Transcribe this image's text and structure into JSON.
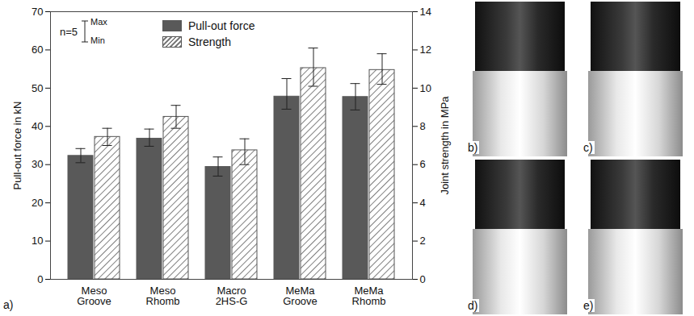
{
  "chart_data": {
    "type": "bar",
    "categories": [
      "Meso Groove",
      "Meso Rhomb",
      "Macro 2HS-G",
      "MeMa Groove",
      "MeMa Rhomb"
    ],
    "series": [
      {
        "name": "Pull-out force",
        "color": "#595959",
        "values": [
          32.3,
          36.8,
          29.4,
          47.8,
          47.7
        ],
        "min": [
          30.5,
          34.8,
          27.0,
          44.5,
          44.3
        ],
        "max": [
          34.2,
          39.3,
          32.0,
          52.5,
          51.2
        ]
      },
      {
        "name": "Strength",
        "color": "#7f7f7f",
        "axis": "y2",
        "values": [
          7.45,
          8.5,
          6.75,
          11.05,
          10.95
        ],
        "min": [
          7.0,
          7.9,
          6.0,
          10.1,
          10.2
        ],
        "max": [
          7.9,
          9.1,
          7.35,
          12.1,
          11.8
        ]
      }
    ],
    "ylabel": "Pull-out force in kN",
    "y2label": "Joint strength in MPa",
    "ylim": [
      0,
      70
    ],
    "yticks": [
      0,
      10,
      20,
      30,
      40,
      50,
      60,
      70
    ],
    "y2lim": [
      0,
      14
    ],
    "y2ticks": [
      0,
      2,
      4,
      6,
      8,
      10,
      12,
      14
    ],
    "grid": false,
    "legend": "top",
    "error_bar_legend": {
      "text": "n=5",
      "max_label": "Max",
      "min_label": "Min"
    },
    "panel_label": "a)",
    "photo_labels": [
      "b)",
      "c)",
      "d)",
      "e)"
    ]
  }
}
